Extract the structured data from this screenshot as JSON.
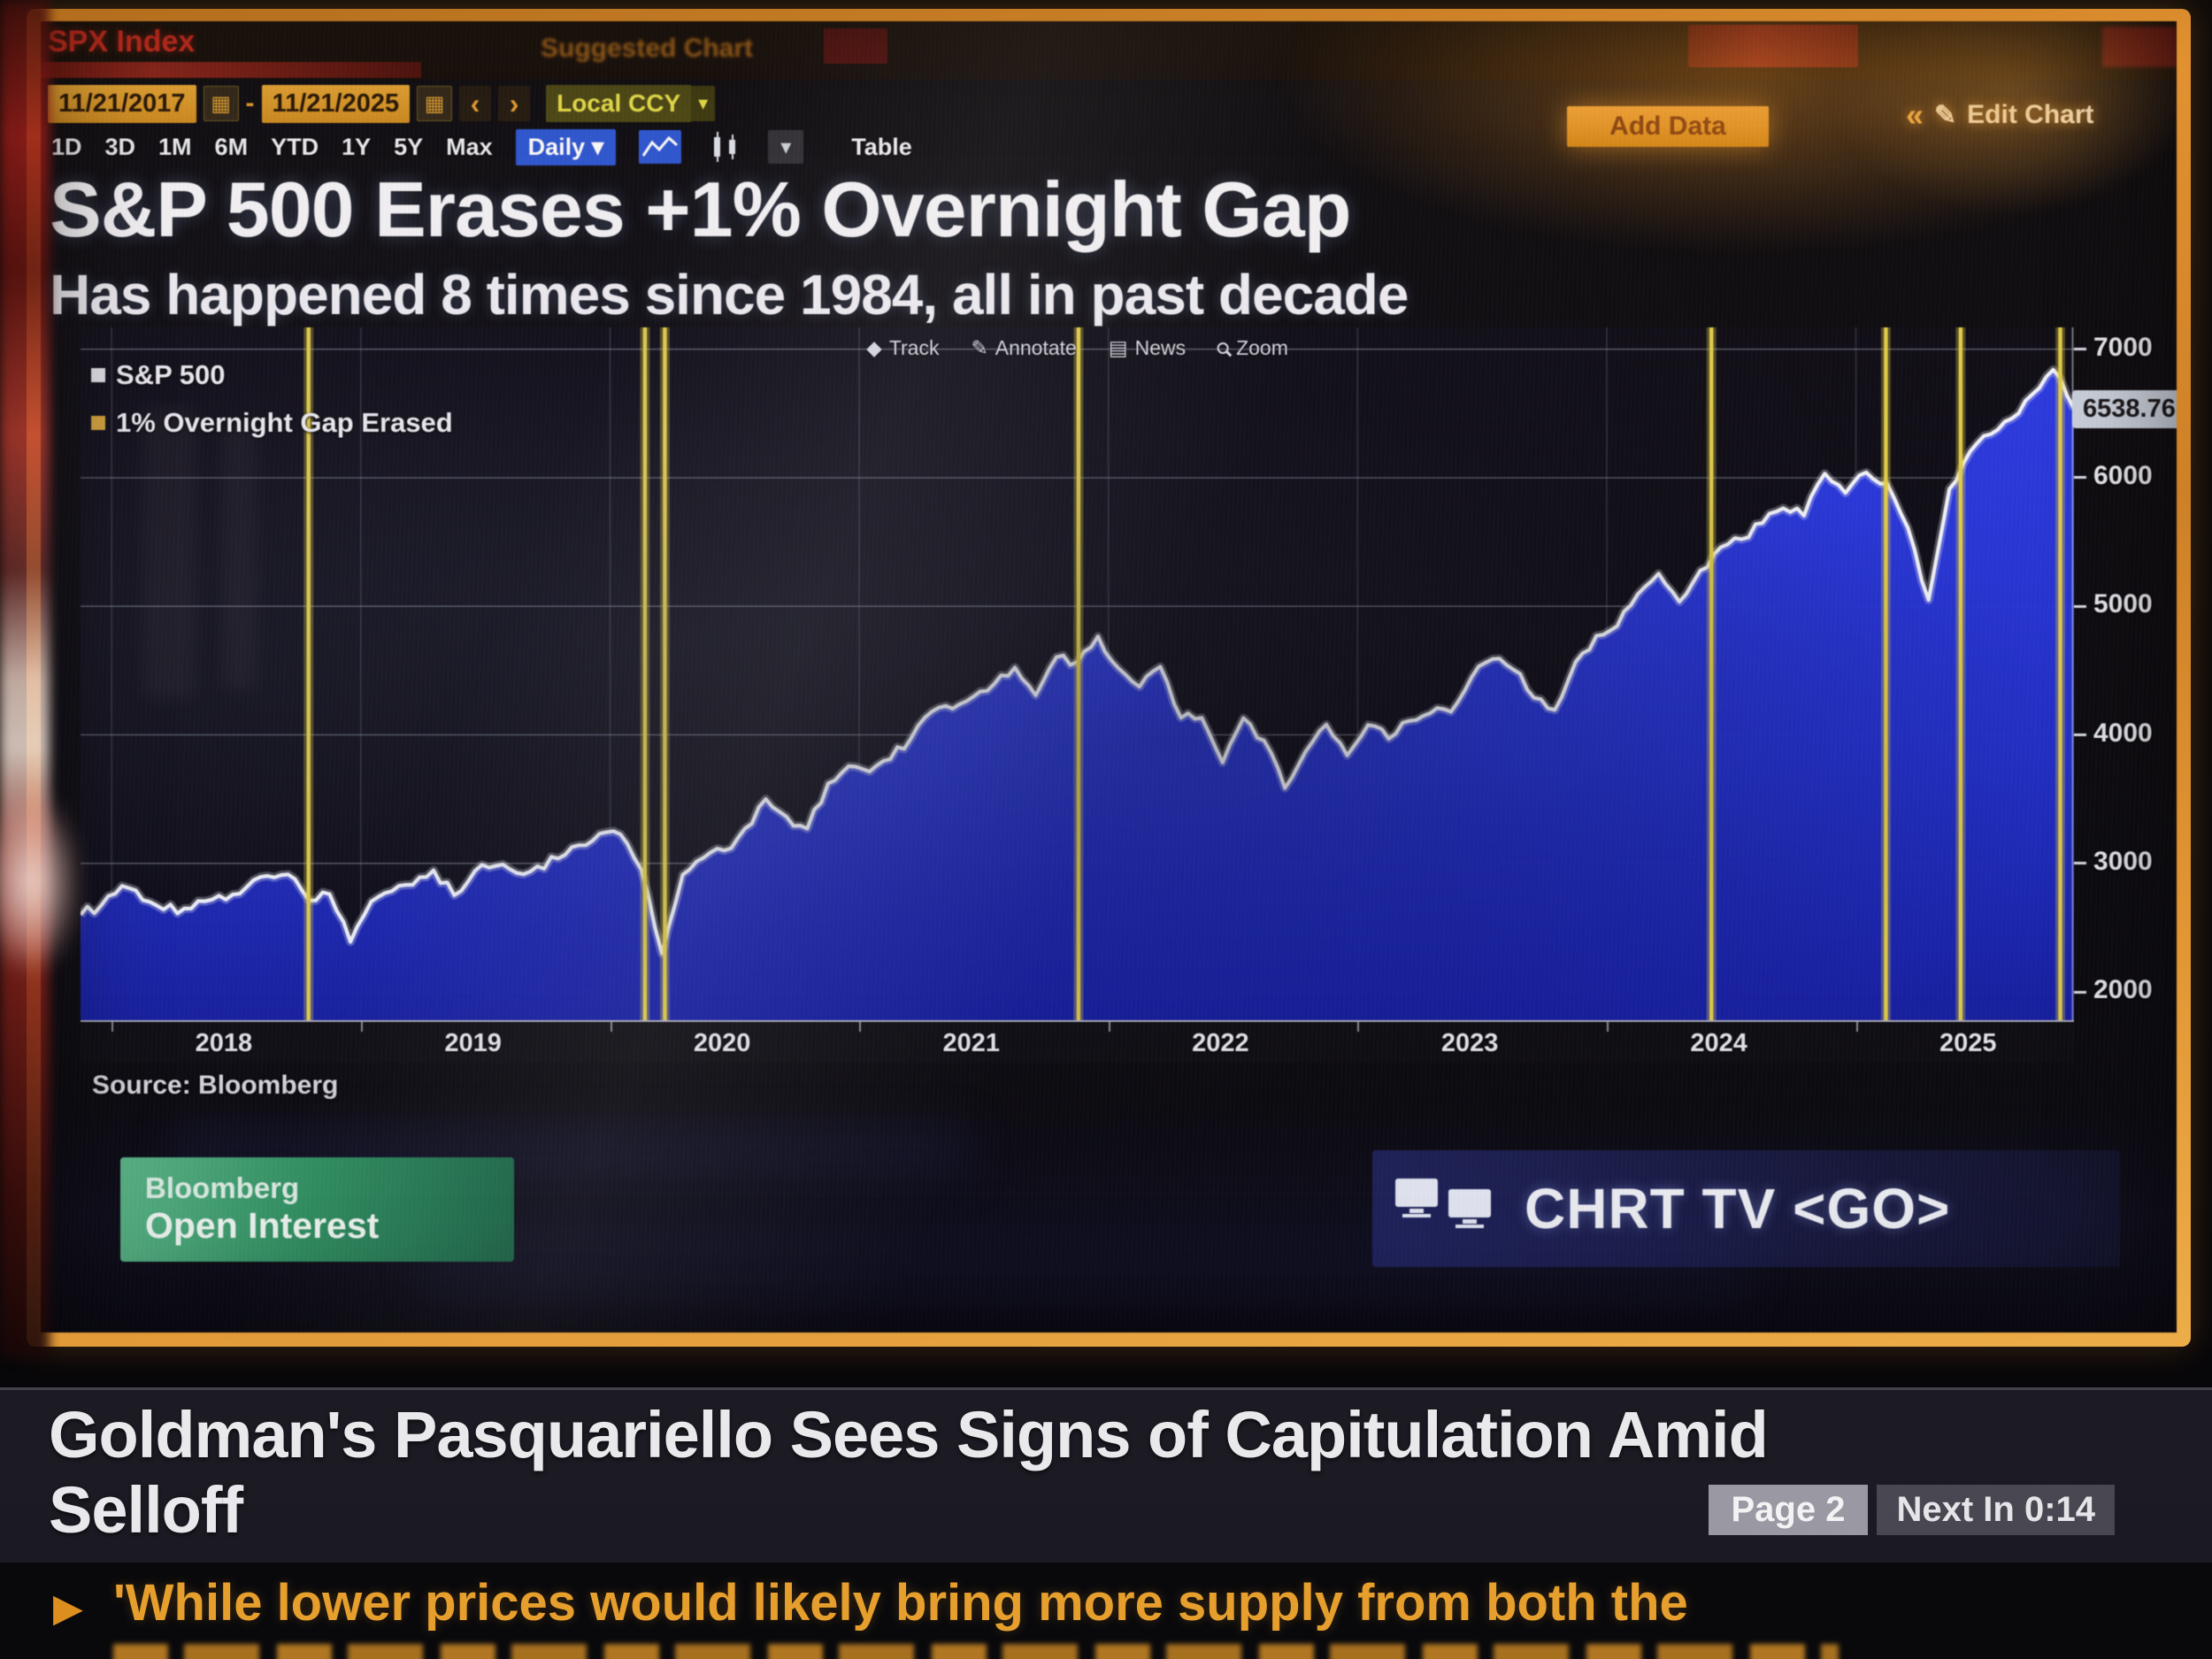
{
  "colors": {
    "bezel": "#dd8f2b",
    "chart_blue": "#2233dd",
    "line_white": "#f4f7ff",
    "event_yellow": "#e3cf4a",
    "ticker_orange": "#f2a72e",
    "green_badge": "#2f9162"
  },
  "terminal": {
    "security": "SPX Index",
    "suggested_chart": "Suggested Chart",
    "date_from": "11/21/2017",
    "date_to": "11/21/2025",
    "currency": "Local CCY",
    "add_data": "Add Data",
    "edit_chart": "Edit Chart",
    "periods": [
      "1D",
      "3D",
      "1M",
      "6M",
      "YTD",
      "1Y",
      "5Y",
      "Max"
    ],
    "frequency": "Daily",
    "table_label": "Table",
    "chart_tools": [
      {
        "label": "Track",
        "glyph": "◆",
        "icon": "track-icon"
      },
      {
        "label": "Annotate",
        "glyph": "✎",
        "icon": "annotate-icon"
      },
      {
        "label": "News",
        "glyph": "▤",
        "icon": "news-icon"
      },
      {
        "label": "Zoom",
        "glyph": "",
        "icon": "zoom-icon"
      }
    ]
  },
  "chart": {
    "title": "S&P 500 Erases +1% Overnight Gap",
    "subtitle": "Has happened 8 times since 1984, all in past decade",
    "legend": [
      {
        "label": "S&P 500",
        "color": "#e6e6ee"
      },
      {
        "label": "1% Overnight Gap Erased",
        "color": "#d7a53a"
      }
    ],
    "last_price": "6538.76",
    "source": "Source: Bloomberg"
  },
  "chart_data": {
    "type": "area",
    "title": "S&P 500 Erases +1% Overnight Gap",
    "subtitle": "Has happened 8 times since 1984, all in past decade",
    "series_name": "S&P 500 (SPX Index)",
    "frequency": "Daily",
    "x_start_year": 2017.875,
    "x_end_year": 2025.875,
    "x_tick_labels": [
      "2018",
      "2019",
      "2020",
      "2021",
      "2022",
      "2023",
      "2024",
      "2025"
    ],
    "y_ticks": [
      2000,
      3000,
      4000,
      5000,
      6000,
      7000
    ],
    "y_range": [
      1780,
      7170
    ],
    "last_value": 6538.76,
    "monthly_values": [
      2600,
      2674,
      2824,
      2714,
      2641,
      2648,
      2705,
      2718,
      2816,
      2902,
      2914,
      2712,
      2760,
      2390,
      2704,
      2784,
      2834,
      2946,
      2752,
      2942,
      2980,
      2926,
      2977,
      3038,
      3141,
      3231,
      3226,
      2954,
      2300,
      2912,
      3044,
      3100,
      3271,
      3500,
      3363,
      3270,
      3622,
      3756,
      3714,
      3811,
      3973,
      4181,
      4204,
      4298,
      4395,
      4523,
      4308,
      4605,
      4567,
      4766,
      4516,
      4374,
      4530,
      4132,
      4132,
      3785,
      4130,
      3955,
      3586,
      3872,
      4080,
      3840,
      4077,
      3970,
      4109,
      4169,
      4180,
      4450,
      4589,
      4508,
      4288,
      4194,
      4568,
      4770,
      4846,
      5096,
      5254,
      5036,
      5278,
      5460,
      5522,
      5648,
      5762,
      5705,
      6032,
      5882,
      6041,
      5955,
      5612,
      5050,
      5912,
      6205,
      6340,
      6460,
      6650,
      6840,
      6539
    ],
    "event_lines": {
      "label": "1% Overnight Gap Erased",
      "count": 8,
      "x_years": [
        2018.79,
        2020.14,
        2020.22,
        2021.88,
        2024.42,
        2025.12,
        2025.42,
        2025.82
      ]
    },
    "legend_position": "top-left",
    "grid": true
  },
  "footer": {
    "badge_line1": "Bloomberg",
    "badge_line2": "Open Interest",
    "chrt_tv": "CHRT TV <GO>"
  },
  "banner": {
    "headline_line1": "Goldman's Pasquariello Sees Signs of Capitulation Amid",
    "headline_line2": "Selloff",
    "page_badge": "Page 2",
    "next_in": "Next In 0:14",
    "ticker": "'While lower prices would likely bring more supply from both the"
  }
}
